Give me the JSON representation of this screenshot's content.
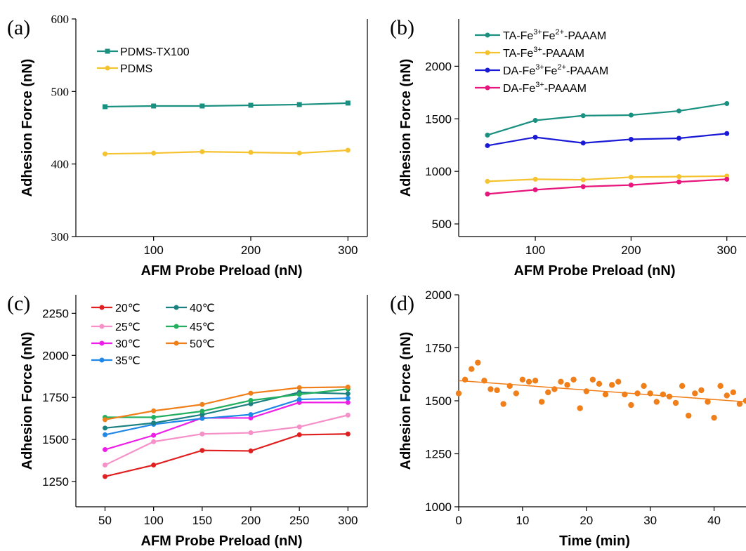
{
  "colors": {
    "teal": "#1a9080",
    "yellow": "#f5c230",
    "blue": "#1a1ad6",
    "magenta": "#e8157d",
    "red": "#e02020",
    "pink": "#f590c8",
    "violet": "#ee1ee8",
    "skyblue": "#1f87e6",
    "darkteal": "#1a8080",
    "green": "#22b060",
    "orange": "#f07f1a"
  },
  "chart_data": [
    {
      "panel": "(a)",
      "type": "line",
      "xlabel": "AFM Probe Preload (nN)",
      "ylabel": "Adhesion Force (nN)",
      "xlim": [
        20,
        320
      ],
      "ylim": [
        300,
        600
      ],
      "xticks": [
        100,
        200,
        300
      ],
      "yticks": [
        300,
        400,
        500,
        600
      ],
      "x": [
        50,
        100,
        150,
        200,
        250,
        300
      ],
      "legend_position": "upper-left",
      "series": [
        {
          "name": "PDMS-TX100",
          "color": "#1a9080",
          "marker": "square",
          "values": [
            479,
            480,
            480,
            481,
            482,
            484
          ]
        },
        {
          "name": "PDMS",
          "color": "#f5c230",
          "marker": "circle",
          "values": [
            414,
            415,
            417,
            416,
            415,
            419
          ]
        }
      ]
    },
    {
      "panel": "(b)",
      "type": "line",
      "xlabel": "AFM Probe Preload (nN)",
      "ylabel": "Adhesion Force (nN)",
      "xlim": [
        20,
        320
      ],
      "ylim": [
        380,
        2450
      ],
      "xticks": [
        100,
        200,
        300
      ],
      "yticks": [
        500,
        1000,
        1500,
        2000
      ],
      "x": [
        50,
        100,
        150,
        200,
        250,
        300
      ],
      "legend_position": "upper-left",
      "series": [
        {
          "name": "TA-Fe3+Fe2+-PAAAM",
          "label": [
            "TA-Fe",
            "3+",
            "Fe",
            "2+",
            "-PAAAM"
          ],
          "color": "#1a9080",
          "values": [
            1345,
            1485,
            1530,
            1535,
            1575,
            1645
          ]
        },
        {
          "name": "TA-Fe3+-PAAAM",
          "label": [
            "TA-Fe",
            "3+",
            "",
            "",
            "-PAAAM"
          ],
          "color": "#f5c230",
          "values": [
            905,
            925,
            920,
            945,
            950,
            955
          ]
        },
        {
          "name": "DA-Fe3+Fe2+-PAAAM",
          "label": [
            "DA-Fe",
            "3+",
            "Fe",
            "2+",
            "-PAAAM"
          ],
          "color": "#1a1ad6",
          "values": [
            1245,
            1325,
            1270,
            1305,
            1315,
            1360
          ]
        },
        {
          "name": "DA-Fe3+-PAAAM",
          "label": [
            "DA-Fe",
            "3+",
            "",
            "",
            "-PAAAM"
          ],
          "color": "#e8157d",
          "values": [
            785,
            825,
            855,
            870,
            900,
            925
          ]
        }
      ]
    },
    {
      "panel": "(c)",
      "type": "line",
      "xlabel": "AFM Probe Preload (nN)",
      "ylabel": "Adhesion Force (nN)",
      "xlim": [
        20,
        320
      ],
      "ylim": [
        1100,
        2360
      ],
      "xticks": [
        50,
        100,
        150,
        200,
        250,
        300
      ],
      "yticks": [
        1250,
        1500,
        1750,
        2000,
        2250
      ],
      "x": [
        50,
        100,
        150,
        200,
        250,
        300
      ],
      "legend_position": "upper-left",
      "series": [
        {
          "name": "20℃",
          "color": "#e02020",
          "values": [
            1280,
            1348,
            1435,
            1432,
            1528,
            1533
          ]
        },
        {
          "name": "25℃",
          "color": "#f590c8",
          "values": [
            1348,
            1487,
            1533,
            1540,
            1575,
            1645
          ]
        },
        {
          "name": "30℃",
          "color": "#ee1ee8",
          "values": [
            1440,
            1525,
            1628,
            1628,
            1720,
            1720
          ]
        },
        {
          "name": "35℃",
          "color": "#1f87e6",
          "values": [
            1528,
            1590,
            1625,
            1648,
            1738,
            1745
          ]
        },
        {
          "name": "40℃",
          "color": "#1a8080",
          "values": [
            1568,
            1598,
            1648,
            1712,
            1780,
            1772
          ]
        },
        {
          "name": "45℃",
          "color": "#22b060",
          "values": [
            1632,
            1632,
            1668,
            1732,
            1768,
            1800
          ]
        },
        {
          "name": "50℃",
          "color": "#f07f1a",
          "values": [
            1618,
            1670,
            1708,
            1775,
            1808,
            1812
          ]
        }
      ]
    },
    {
      "panel": "(d)",
      "type": "scatter",
      "xlabel": "Time (min)",
      "ylabel": "Adhesion Force (nN)",
      "xlim": [
        0,
        45
      ],
      "ylim": [
        1000,
        2000
      ],
      "xticks": [
        0,
        10,
        20,
        30,
        40
      ],
      "yticks": [
        1000,
        1250,
        1500,
        1750,
        2000
      ],
      "color": "#f07f1a",
      "fit_line": {
        "x": [
          0,
          45
        ],
        "y": [
          1595,
          1495
        ]
      },
      "x": [
        0,
        1,
        2,
        3,
        4,
        5,
        6,
        7,
        8,
        9,
        10,
        11,
        12,
        13,
        14,
        15,
        16,
        17,
        18,
        19,
        20,
        21,
        22,
        23,
        24,
        25,
        26,
        27,
        28,
        29,
        30,
        31,
        32,
        33,
        34,
        35,
        36,
        37,
        38,
        39,
        40,
        41,
        42,
        43,
        44,
        45
      ],
      "y": [
        1535,
        1600,
        1650,
        1680,
        1595,
        1555,
        1550,
        1485,
        1570,
        1535,
        1600,
        1590,
        1595,
        1495,
        1540,
        1555,
        1590,
        1575,
        1600,
        1465,
        1545,
        1600,
        1580,
        1530,
        1575,
        1590,
        1530,
        1480,
        1535,
        1570,
        1535,
        1495,
        1530,
        1520,
        1490,
        1570,
        1430,
        1535,
        1550,
        1495,
        1420,
        1570,
        1525,
        1540,
        1485,
        1500
      ]
    }
  ]
}
